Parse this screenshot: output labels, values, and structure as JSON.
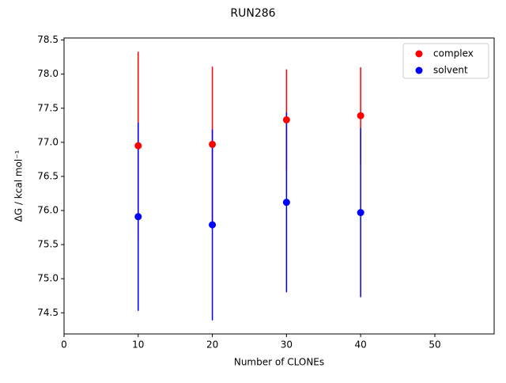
{
  "chart_data": {
    "type": "scatter",
    "title": "RUN286",
    "xlabel": "Number of CLONEs",
    "ylabel": "ΔG / kcal mol⁻¹",
    "series": [
      {
        "name": "complex",
        "color": "#ff0000",
        "x": [
          10,
          20,
          30,
          40
        ],
        "values": [
          76.95,
          76.97,
          77.33,
          77.39
        ],
        "errors": [
          1.38,
          1.14,
          0.74,
          0.71
        ]
      },
      {
        "name": "solvent",
        "color": "#0000ff",
        "x": [
          10,
          20,
          30,
          40
        ],
        "values": [
          75.91,
          75.79,
          76.12,
          75.97
        ],
        "errors": [
          1.38,
          1.4,
          1.32,
          1.24
        ]
      }
    ],
    "xlim": [
      0,
      58
    ],
    "xticks": [
      0,
      10,
      20,
      30,
      40,
      50
    ],
    "ylim": [
      74.19,
      78.53
    ],
    "yticks": [
      74.5,
      {
        "value": 75,
        "label": "75.0"
      },
      75.5,
      {
        "value": 76,
        "label": "76.0"
      },
      76.5,
      {
        "value": 77,
        "label": "77.0"
      },
      77.5,
      {
        "value": 78,
        "label": "78.0"
      },
      78.5
    ],
    "legend": "upper right"
  }
}
